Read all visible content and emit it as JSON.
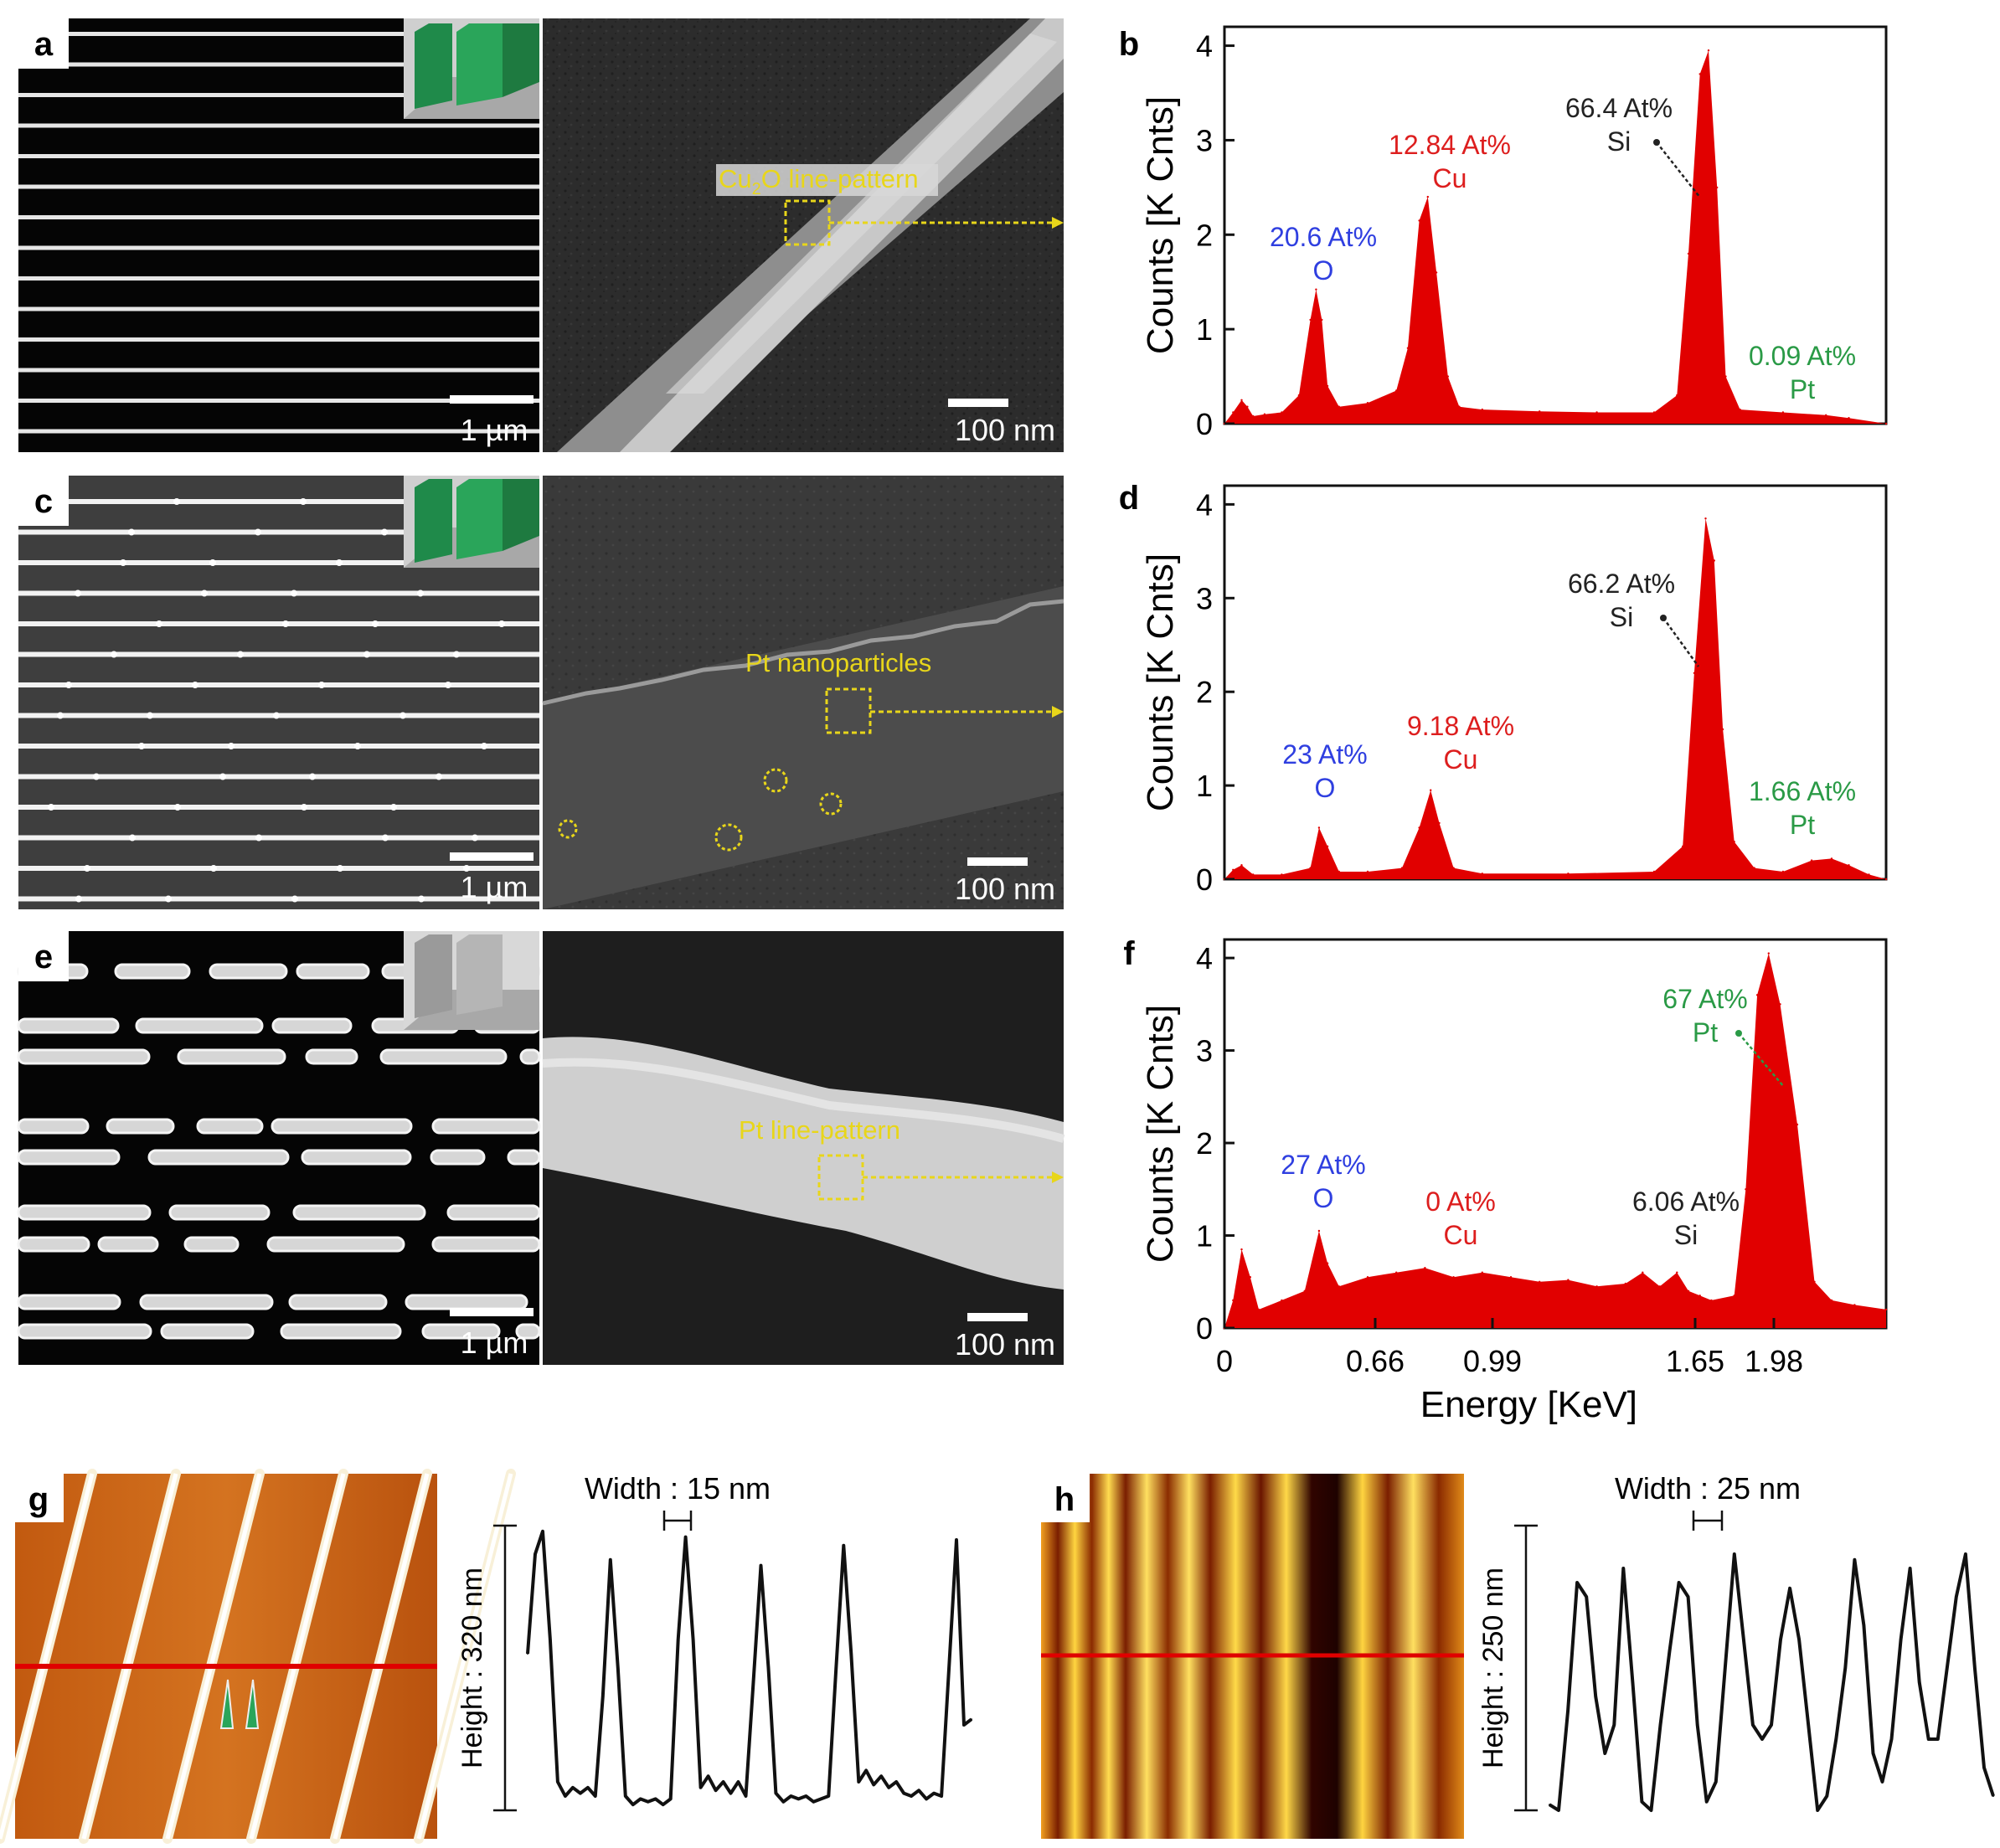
{
  "panel_letters": [
    "a",
    "b",
    "c",
    "d",
    "e",
    "f",
    "g",
    "h"
  ],
  "colors": {
    "spectrum_fill": "#e10000",
    "oxygen": "#2f3fe0",
    "copper": "#dd1e1e",
    "silicon": "#222222",
    "platinum": "#2a9a46",
    "sem_label": "#e8d61a",
    "afm_line": "#e00000"
  },
  "sem": {
    "scale_micro": "1 µm",
    "scale_nano": "100 nm",
    "labels": {
      "a": {
        "main": "Cu",
        "sub": "2",
        "rest": "O line-pattern"
      },
      "c": "Pt nanoparticles",
      "e": "Pt line-pattern"
    }
  },
  "chart_data": [
    {
      "panel": "b",
      "type": "area",
      "ylabel": "Counts [K Cnts]",
      "ylim": [
        0,
        4.2
      ],
      "yticks": [
        "0",
        "1",
        "2",
        "3",
        "4"
      ],
      "xlim": [
        0,
        2.31
      ],
      "x": [
        0,
        0.03,
        0.06,
        0.08,
        0.1,
        0.14,
        0.2,
        0.26,
        0.3,
        0.32,
        0.34,
        0.36,
        0.4,
        0.5,
        0.6,
        0.64,
        0.68,
        0.71,
        0.74,
        0.78,
        0.82,
        0.9,
        1.1,
        1.3,
        1.5,
        1.58,
        1.62,
        1.66,
        1.69,
        1.72,
        1.75,
        1.8,
        1.95,
        2.1,
        2.18,
        2.31
      ],
      "values": [
        0,
        0.12,
        0.25,
        0.18,
        0.08,
        0.1,
        0.12,
        0.3,
        1.1,
        1.42,
        1.1,
        0.4,
        0.18,
        0.22,
        0.35,
        0.8,
        2.15,
        2.4,
        1.6,
        0.5,
        0.18,
        0.15,
        0.13,
        0.12,
        0.12,
        0.3,
        1.8,
        3.7,
        3.95,
        2.5,
        0.5,
        0.15,
        0.12,
        0.09,
        0.06,
        0
      ],
      "annotations": [
        {
          "pct": "20.6 At%",
          "el": "O",
          "color": "oxygen"
        },
        {
          "pct": "12.84 At%",
          "el": "Cu",
          "color": "copper"
        },
        {
          "pct": "66.4 At%",
          "el": "Si",
          "color": "silicon"
        },
        {
          "pct": "0.09 At%",
          "el": "Pt",
          "color": "platinum"
        }
      ]
    },
    {
      "panel": "d",
      "type": "area",
      "ylabel": "Counts [K Cnts]",
      "ylim": [
        0,
        4.2
      ],
      "yticks": [
        "0",
        "1",
        "2",
        "3",
        "4"
      ],
      "xlim": [
        0,
        2.31
      ],
      "x": [
        0,
        0.03,
        0.06,
        0.1,
        0.2,
        0.3,
        0.33,
        0.36,
        0.4,
        0.5,
        0.62,
        0.68,
        0.72,
        0.75,
        0.8,
        0.9,
        1.2,
        1.5,
        1.6,
        1.64,
        1.68,
        1.71,
        1.74,
        1.78,
        1.85,
        1.95,
        2.05,
        2.12,
        2.18,
        2.25,
        2.31
      ],
      "values": [
        0,
        0.1,
        0.15,
        0.05,
        0.05,
        0.12,
        0.55,
        0.35,
        0.08,
        0.08,
        0.12,
        0.55,
        0.95,
        0.6,
        0.12,
        0.06,
        0.06,
        0.08,
        0.35,
        2.2,
        3.85,
        3.4,
        1.6,
        0.4,
        0.12,
        0.08,
        0.2,
        0.22,
        0.15,
        0.05,
        0
      ],
      "annotations": [
        {
          "pct": "23 At%",
          "el": "O",
          "color": "oxygen"
        },
        {
          "pct": "9.18 At%",
          "el": "Cu",
          "color": "copper"
        },
        {
          "pct": "66.2 At%",
          "el": "Si",
          "color": "silicon"
        },
        {
          "pct": "1.66 At%",
          "el": "Pt",
          "color": "platinum"
        }
      ]
    },
    {
      "panel": "f",
      "type": "area",
      "ylabel": "Counts [K Cnts]",
      "ylim": [
        0,
        4.2
      ],
      "yticks": [
        "0",
        "1",
        "2",
        "3",
        "4"
      ],
      "xlim": [
        0,
        2.31
      ],
      "xlabel": "Energy [KeV]",
      "xticks": [
        "0",
        "0.66",
        "0.99",
        "1.65",
        "1.98"
      ],
      "x": [
        0,
        0.03,
        0.06,
        0.09,
        0.12,
        0.2,
        0.28,
        0.33,
        0.36,
        0.4,
        0.5,
        0.6,
        0.7,
        0.8,
        0.9,
        1.0,
        1.1,
        1.2,
        1.3,
        1.4,
        1.46,
        1.52,
        1.58,
        1.62,
        1.66,
        1.7,
        1.78,
        1.82,
        1.86,
        1.9,
        1.94,
        2.0,
        2.06,
        2.12,
        2.2,
        2.31
      ],
      "values": [
        0,
        0.3,
        0.85,
        0.55,
        0.2,
        0.3,
        0.4,
        1.05,
        0.7,
        0.45,
        0.55,
        0.6,
        0.65,
        0.55,
        0.6,
        0.55,
        0.5,
        0.52,
        0.45,
        0.48,
        0.6,
        0.45,
        0.6,
        0.4,
        0.35,
        0.3,
        0.35,
        1.5,
        3.6,
        4.05,
        3.5,
        2.2,
        0.5,
        0.3,
        0.25,
        0.2
      ],
      "annotations": [
        {
          "pct": "27 At%",
          "el": "O",
          "color": "oxygen"
        },
        {
          "pct": "0 At%",
          "el": "Cu",
          "color": "copper"
        },
        {
          "pct": "6.06 At%",
          "el": "Si",
          "color": "silicon"
        },
        {
          "pct": "67 At%",
          "el": "Pt",
          "color": "platinum"
        }
      ]
    },
    {
      "panel": "g",
      "type": "line",
      "title": "Width : 15 nm",
      "ylabel": "Height : 320 nm",
      "values": [
        0.55,
        0.9,
        0.98,
        0.6,
        0.1,
        0.05,
        0.08,
        0.06,
        0.08,
        0.05,
        0.4,
        0.88,
        0.5,
        0.05,
        0.02,
        0.04,
        0.03,
        0.04,
        0.02,
        0.04,
        0.6,
        0.96,
        0.6,
        0.08,
        0.12,
        0.07,
        0.1,
        0.06,
        0.1,
        0.05,
        0.45,
        0.86,
        0.5,
        0.06,
        0.03,
        0.05,
        0.04,
        0.05,
        0.03,
        0.04,
        0.05,
        0.5,
        0.93,
        0.55,
        0.1,
        0.14,
        0.09,
        0.12,
        0.08,
        0.1,
        0.06,
        0.05,
        0.07,
        0.04,
        0.06,
        0.05,
        0.5,
        0.95,
        0.3,
        0.32
      ]
    },
    {
      "panel": "h",
      "type": "line",
      "title": "Width : 25 nm",
      "ylabel": "Height : 250 nm",
      "values": [
        0.02,
        0.0,
        0.35,
        0.8,
        0.75,
        0.4,
        0.2,
        0.3,
        0.85,
        0.45,
        0.03,
        0.0,
        0.3,
        0.56,
        0.8,
        0.75,
        0.3,
        0.03,
        0.1,
        0.5,
        0.9,
        0.6,
        0.3,
        0.25,
        0.3,
        0.6,
        0.78,
        0.6,
        0.3,
        0.0,
        0.05,
        0.25,
        0.5,
        0.88,
        0.65,
        0.2,
        0.1,
        0.25,
        0.6,
        0.85,
        0.45,
        0.25,
        0.25,
        0.5,
        0.75,
        0.9,
        0.5,
        0.15,
        0.05
      ]
    }
  ]
}
